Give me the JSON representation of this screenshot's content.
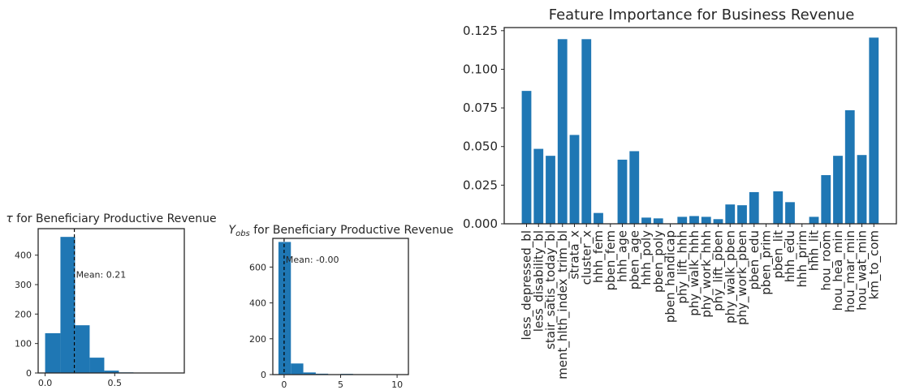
{
  "chart_data": [
    {
      "type": "bar",
      "title": "τ for Beneficiary Productive Revenue",
      "title_symbol": "τ",
      "title_rest": " for Beneficiary Productive Revenue",
      "xlabel": "",
      "ylabel": "",
      "bin_edges": [
        0.0,
        0.11,
        0.215,
        0.32,
        0.425,
        0.53,
        0.635,
        0.74,
        0.845,
        0.95
      ],
      "counts": [
        135,
        462,
        162,
        52,
        8,
        2,
        1,
        0,
        0
      ],
      "xlim": [
        -0.05,
        1.0
      ],
      "ylim": [
        0,
        490
      ],
      "xticks": [
        0.0,
        0.5
      ],
      "xtick_labels": [
        "0.0",
        "0.5"
      ],
      "yticks": [
        0,
        100,
        200,
        300,
        400
      ],
      "ytick_labels": [
        "0",
        "100",
        "200",
        "300",
        "400"
      ],
      "mean_line": 0.21,
      "mean_label": "Mean: 0.21",
      "color": "#1f77b4",
      "grid": false
    },
    {
      "type": "bar",
      "title": "Yobs for Beneficiary Productive Revenue",
      "title_symbol": "Y",
      "title_subscript": "obs",
      "title_rest": " for Beneficiary Productive Revenue",
      "xlabel": "",
      "ylabel": "",
      "bin_edges": [
        -0.5,
        0.6,
        1.7,
        2.8,
        3.9,
        5.0,
        6.1,
        7.2,
        8.3,
        9.4,
        10.5
      ],
      "counts": [
        740,
        62,
        12,
        5,
        2,
        4,
        1,
        0,
        0,
        1
      ],
      "xlim": [
        -1,
        11
      ],
      "ylim": [
        0,
        760
      ],
      "xticks": [
        0,
        5,
        10
      ],
      "xtick_labels": [
        "0",
        "5",
        "10"
      ],
      "yticks": [
        0,
        200,
        400,
        600
      ],
      "ytick_labels": [
        "0",
        "200",
        "400",
        "600"
      ],
      "mean_line": 0.0,
      "mean_label": "Mean: -0.00",
      "color": "#1f77b4",
      "grid": false
    },
    {
      "type": "bar",
      "title": "Feature Importance for Business Revenue",
      "xlabel": "",
      "ylabel": "",
      "categories": [
        "less_depressed_bl",
        "less_disability_bl",
        "stair_satis_today_bl",
        "ment_hlth_index_trim_bl",
        "strata_x",
        "cluster_x",
        "hhh_fem",
        "pben_fem",
        "hhh_age",
        "pben_age",
        "hhh_poly",
        "pben_poly",
        "pben_handicap",
        "phy_lift_hhh",
        "phy_walk_hhh",
        "phy_work_hhh",
        "phy_lift_pben",
        "phy_walk_pben",
        "phy_work_pben",
        "pben_edu",
        "pben_prim",
        "pben_lit",
        "hhh_edu",
        "hhh_prim",
        "hhh_lit",
        "hou_room",
        "hou_hea_min",
        "hou_mar_min",
        "hou_wat_min",
        "km_to_com"
      ],
      "values": [
        0.086,
        0.0485,
        0.044,
        0.1195,
        0.0575,
        0.1195,
        0.007,
        0.0,
        0.0415,
        0.047,
        0.004,
        0.0035,
        0.0,
        0.0045,
        0.005,
        0.0045,
        0.003,
        0.0125,
        0.012,
        0.0205,
        0.0,
        0.021,
        0.014,
        0.0,
        0.0045,
        0.0315,
        0.044,
        0.0735,
        0.0445,
        0.1205
      ],
      "ylim": [
        0,
        0.127
      ],
      "yticks": [
        0.0,
        0.025,
        0.05,
        0.075,
        0.1,
        0.125
      ],
      "ytick_labels": [
        "0.000",
        "0.025",
        "0.050",
        "0.075",
        "0.100",
        "0.125"
      ],
      "color": "#1f77b4",
      "grid": false
    }
  ]
}
